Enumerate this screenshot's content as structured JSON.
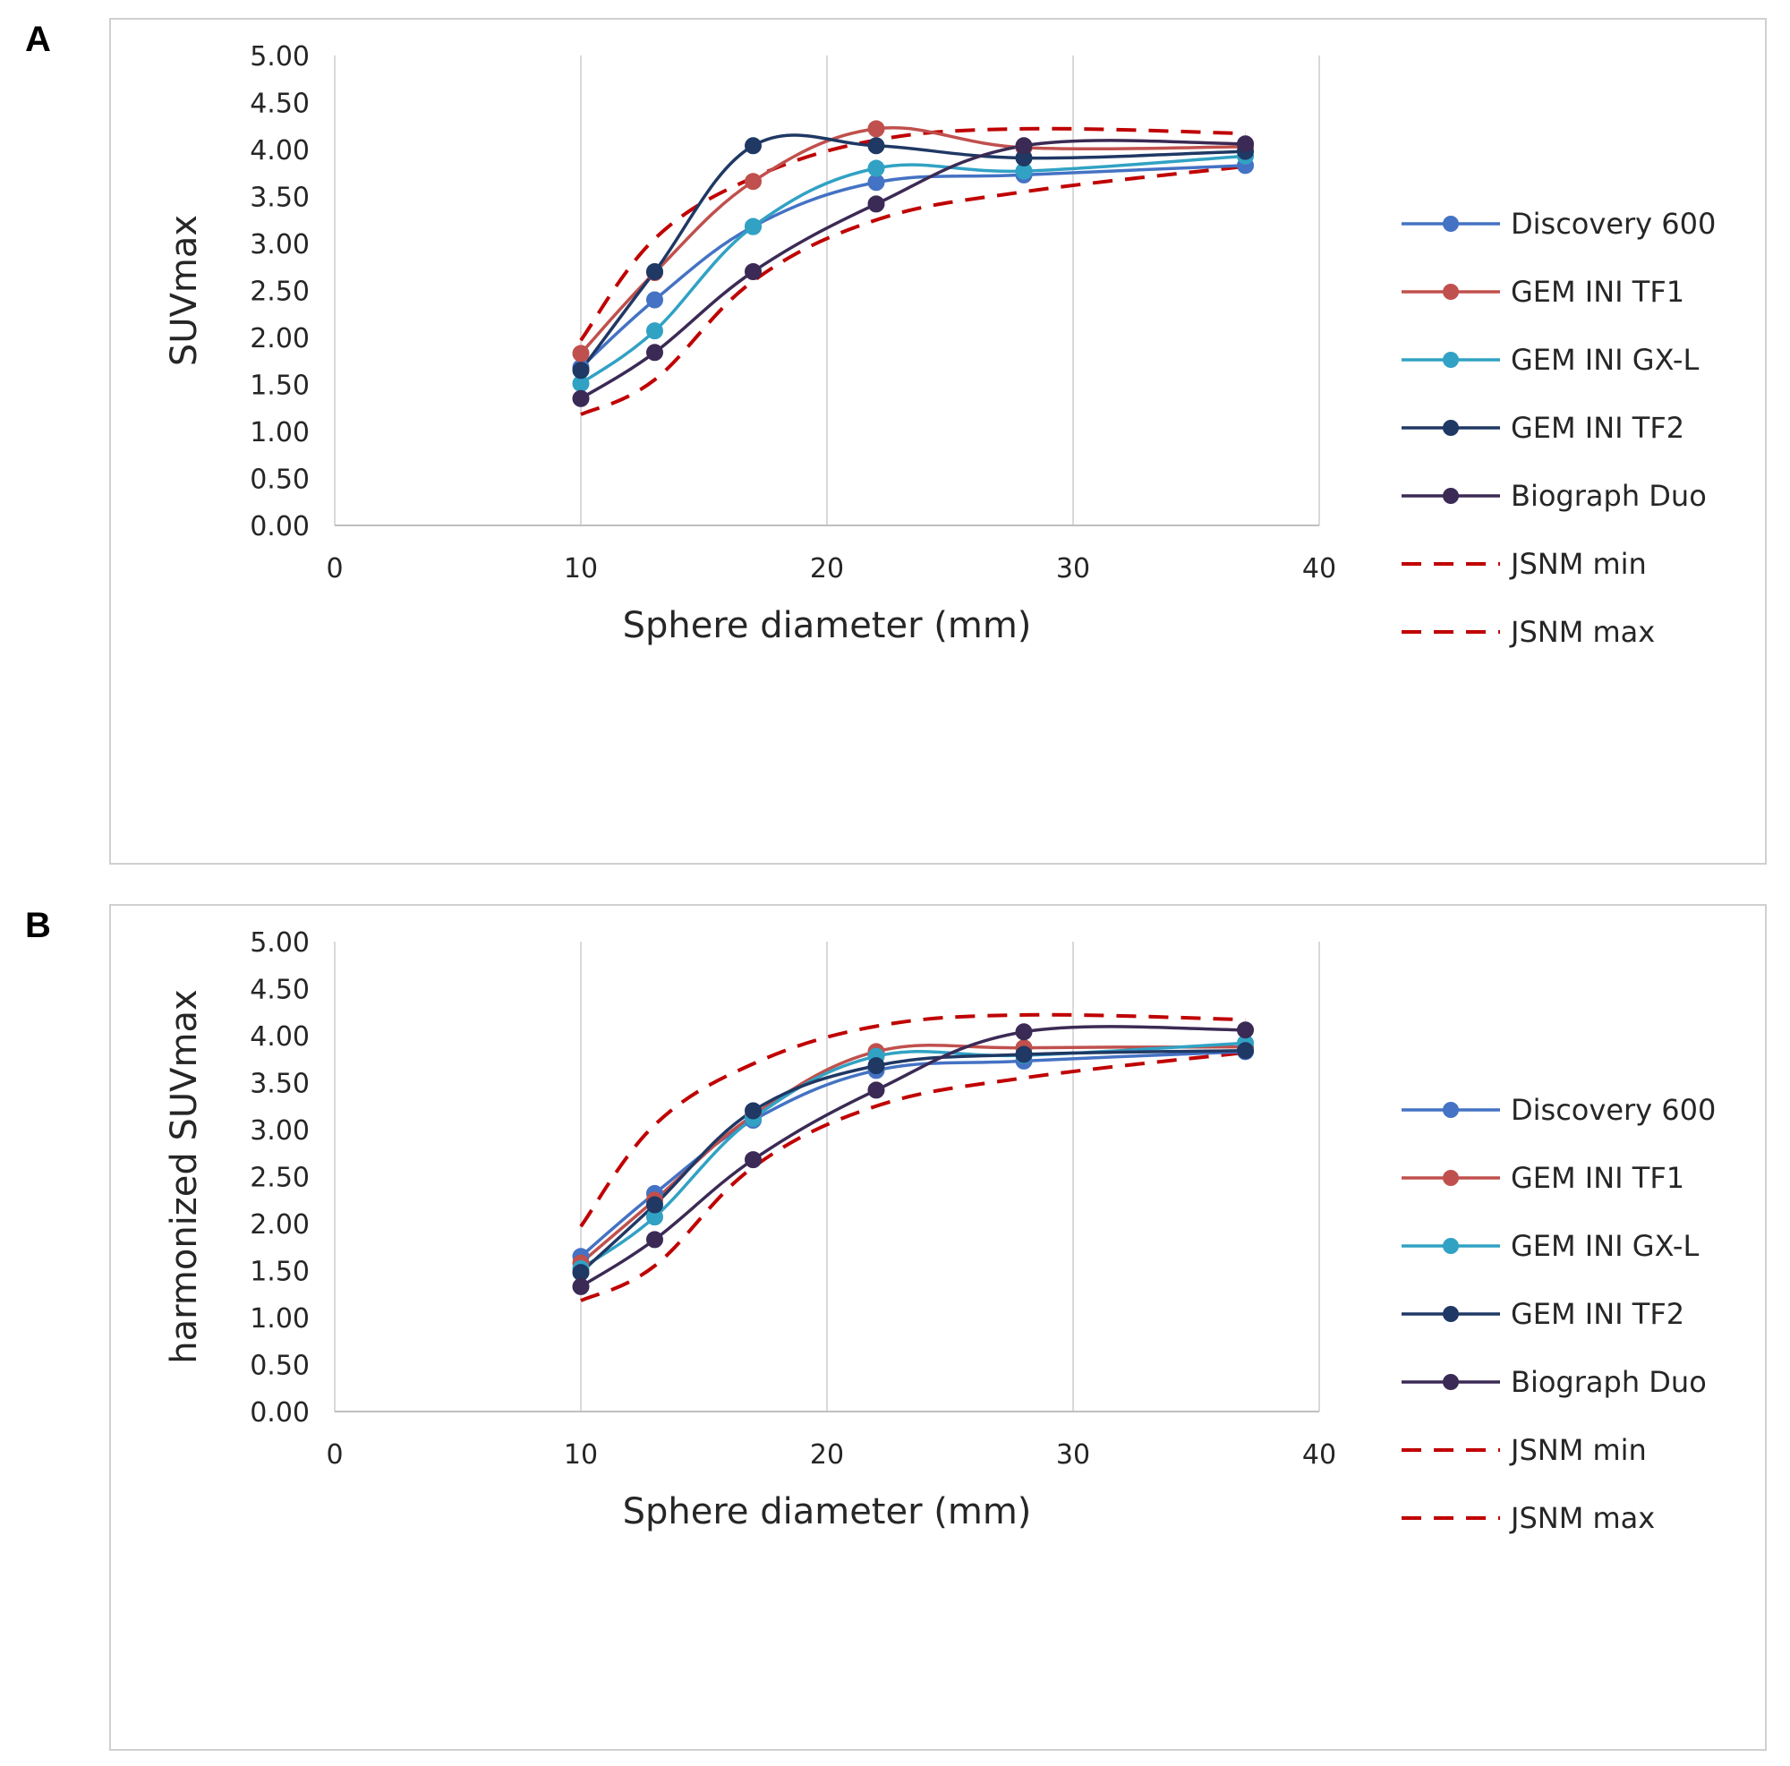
{
  "panels": [
    {
      "letter": "A",
      "chart_data": {
        "type": "line",
        "xlabel": "Sphere diameter (mm)",
        "ylabel": "SUVmax",
        "xlim": [
          0,
          40
        ],
        "ylim": [
          0,
          5
        ],
        "x_ticks": [
          "0",
          "10",
          "20",
          "30",
          "40"
        ],
        "y_ticks": [
          "0.00",
          "0.50",
          "1.00",
          "1.50",
          "2.00",
          "2.50",
          "3.00",
          "3.50",
          "4.00",
          "4.50",
          "5.00"
        ],
        "grid": "vertical",
        "legend_position": "right",
        "x": [
          10,
          13,
          17,
          22,
          28,
          37
        ],
        "series": [
          {
            "name": "Discovery 600",
            "color": "#4472c4",
            "dashed": false,
            "markers": true,
            "values": [
              1.68,
              2.4,
              3.18,
              3.65,
              3.73,
              3.83
            ]
          },
          {
            "name": "GEM INI TF1",
            "color": "#c0504d",
            "dashed": false,
            "markers": true,
            "values": [
              1.83,
              2.69,
              3.66,
              4.22,
              4.02,
              4.03
            ]
          },
          {
            "name": "GEM INI GX-L",
            "color": "#31a2c4",
            "dashed": false,
            "markers": true,
            "values": [
              1.51,
              2.07,
              3.18,
              3.8,
              3.77,
              3.93
            ]
          },
          {
            "name": "GEM INI TF2",
            "color": "#1f3864",
            "dashed": false,
            "markers": true,
            "values": [
              1.65,
              2.7,
              4.04,
              4.04,
              3.91,
              3.98
            ]
          },
          {
            "name": "Biograph Duo",
            "color": "#3b2a55",
            "dashed": false,
            "markers": true,
            "values": [
              1.35,
              1.84,
              2.7,
              3.42,
              4.04,
              4.06
            ]
          },
          {
            "name": "JSNM min",
            "color": "#c00000",
            "dashed": true,
            "markers": false,
            "values": [
              1.18,
              1.55,
              2.6,
              3.25,
              3.55,
              3.82
            ]
          },
          {
            "name": "JSNM max",
            "color": "#c00000",
            "dashed": true,
            "markers": false,
            "values": [
              1.97,
              3.05,
              3.7,
              4.1,
              4.22,
              4.17
            ]
          }
        ]
      }
    },
    {
      "letter": "B",
      "chart_data": {
        "type": "line",
        "xlabel": "Sphere diameter (mm)",
        "ylabel": "harmonized SUVmax",
        "xlim": [
          0,
          40
        ],
        "ylim": [
          0,
          5
        ],
        "x_ticks": [
          "0",
          "10",
          "20",
          "30",
          "40"
        ],
        "y_ticks": [
          "0.00",
          "0.50",
          "1.00",
          "1.50",
          "2.00",
          "2.50",
          "3.00",
          "3.50",
          "4.00",
          "4.50",
          "5.00"
        ],
        "grid": "vertical",
        "legend_position": "right",
        "x": [
          10,
          13,
          17,
          22,
          28,
          37
        ],
        "series": [
          {
            "name": "Discovery 600",
            "color": "#4472c4",
            "dashed": false,
            "markers": true,
            "values": [
              1.65,
              2.32,
              3.1,
              3.63,
              3.73,
              3.83
            ]
          },
          {
            "name": "GEM INI TF1",
            "color": "#c0504d",
            "dashed": false,
            "markers": true,
            "values": [
              1.58,
              2.25,
              3.15,
              3.83,
              3.87,
              3.88
            ]
          },
          {
            "name": "GEM INI GX-L",
            "color": "#31a2c4",
            "dashed": false,
            "markers": true,
            "values": [
              1.52,
              2.07,
              3.12,
              3.78,
              3.79,
              3.92
            ]
          },
          {
            "name": "GEM INI TF2",
            "color": "#1f3864",
            "dashed": false,
            "markers": true,
            "values": [
              1.48,
              2.2,
              3.2,
              3.68,
              3.8,
              3.84
            ]
          },
          {
            "name": "Biograph Duo",
            "color": "#3b2a55",
            "dashed": false,
            "markers": true,
            "values": [
              1.33,
              1.83,
              2.68,
              3.42,
              4.04,
              4.06
            ]
          },
          {
            "name": "JSNM min",
            "color": "#c00000",
            "dashed": true,
            "markers": false,
            "values": [
              1.18,
              1.55,
              2.6,
              3.25,
              3.55,
              3.82
            ]
          },
          {
            "name": "JSNM max",
            "color": "#c00000",
            "dashed": true,
            "markers": false,
            "values": [
              1.97,
              3.05,
              3.7,
              4.1,
              4.22,
              4.17
            ]
          }
        ]
      }
    }
  ]
}
